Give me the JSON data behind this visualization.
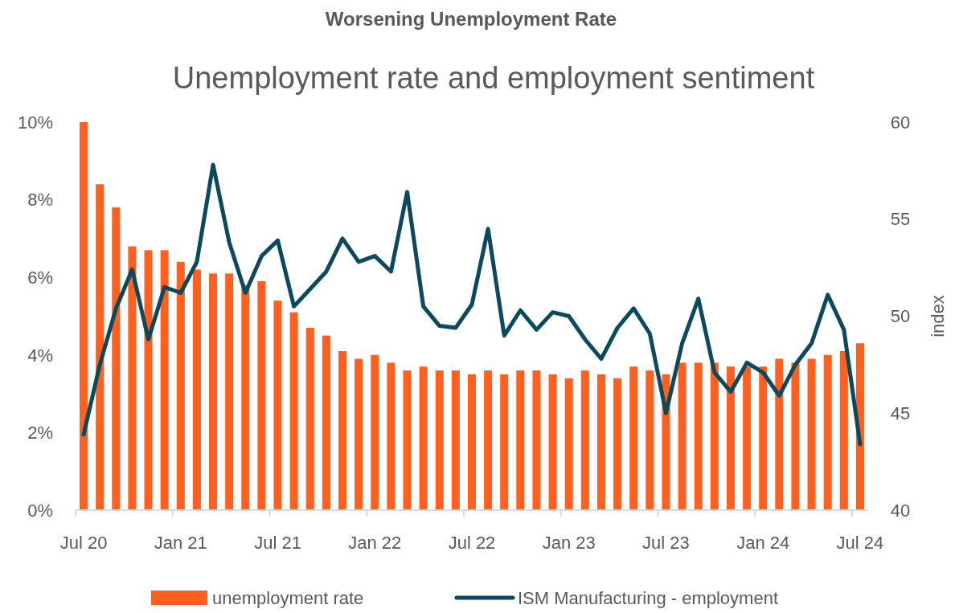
{
  "chart_data": {
    "type": "bar",
    "title": "Worsening Unemployment Rate",
    "subtitle": "Unemployment rate and employment sentiment",
    "y2label": "index",
    "categories": [
      "Jul 20",
      null,
      null,
      null,
      null,
      null,
      "Jan 21",
      null,
      null,
      null,
      null,
      null,
      "Jul 21",
      null,
      null,
      null,
      null,
      null,
      "Jan 22",
      null,
      null,
      null,
      null,
      null,
      "Jul 22",
      null,
      null,
      null,
      null,
      null,
      "Jan 23",
      null,
      null,
      null,
      null,
      null,
      "Jul 23",
      null,
      null,
      null,
      null,
      null,
      "Jan 24",
      null,
      null,
      null,
      null,
      null,
      "Jul 24"
    ],
    "series": [
      {
        "name": "unemployment rate",
        "color": "#ff5f1f",
        "values": [
          10,
          8.4,
          7.8,
          6.8,
          6.7,
          6.7,
          6.4,
          6.2,
          6.1,
          6.1,
          5.8,
          5.9,
          5.4,
          5.1,
          4.7,
          4.5,
          4.1,
          3.9,
          4.0,
          3.8,
          3.6,
          3.7,
          3.6,
          3.6,
          3.5,
          3.6,
          3.5,
          3.6,
          3.6,
          3.5,
          3.4,
          3.6,
          3.5,
          3.4,
          3.7,
          3.6,
          3.5,
          3.8,
          3.8,
          3.8,
          3.7,
          3.7,
          3.7,
          3.9,
          3.8,
          3.9,
          4.0,
          4.1,
          4.3
        ]
      },
      {
        "name": "ISM Manufacturing - employment",
        "type": "line",
        "axis": "y2",
        "color": "#0b4a5c",
        "values": [
          43.9,
          47.5,
          50.4,
          52.4,
          48.8,
          51.5,
          51.2,
          52.8,
          57.8,
          53.8,
          51.2,
          53.1,
          53.9,
          50.5,
          51.4,
          52.3,
          54.0,
          52.8,
          53.1,
          52.3,
          56.4,
          50.5,
          49.5,
          49.4,
          50.6,
          54.5,
          49.0,
          50.3,
          49.3,
          50.2,
          50.0,
          48.8,
          47.8,
          49.4,
          50.4,
          49.1,
          45.0,
          48.6,
          50.9,
          47.1,
          46.1,
          47.6,
          47.1,
          45.9,
          47.5,
          48.6,
          51.1,
          49.3,
          43.4
        ]
      }
    ],
    "ylim": [
      0,
      10
    ],
    "yticks": [
      {
        "value": 0,
        "label": "0%"
      },
      {
        "value": 2,
        "label": "2%"
      },
      {
        "value": 4,
        "label": "4%"
      },
      {
        "value": 6,
        "label": "6%"
      },
      {
        "value": 8,
        "label": "8%"
      },
      {
        "value": 10,
        "label": "10%"
      }
    ],
    "y2lim": [
      40,
      60
    ],
    "y2ticks": [
      40,
      45,
      50,
      55,
      60
    ],
    "grid": false,
    "legend": "bottom",
    "line_style": "solid",
    "marker": "none"
  }
}
